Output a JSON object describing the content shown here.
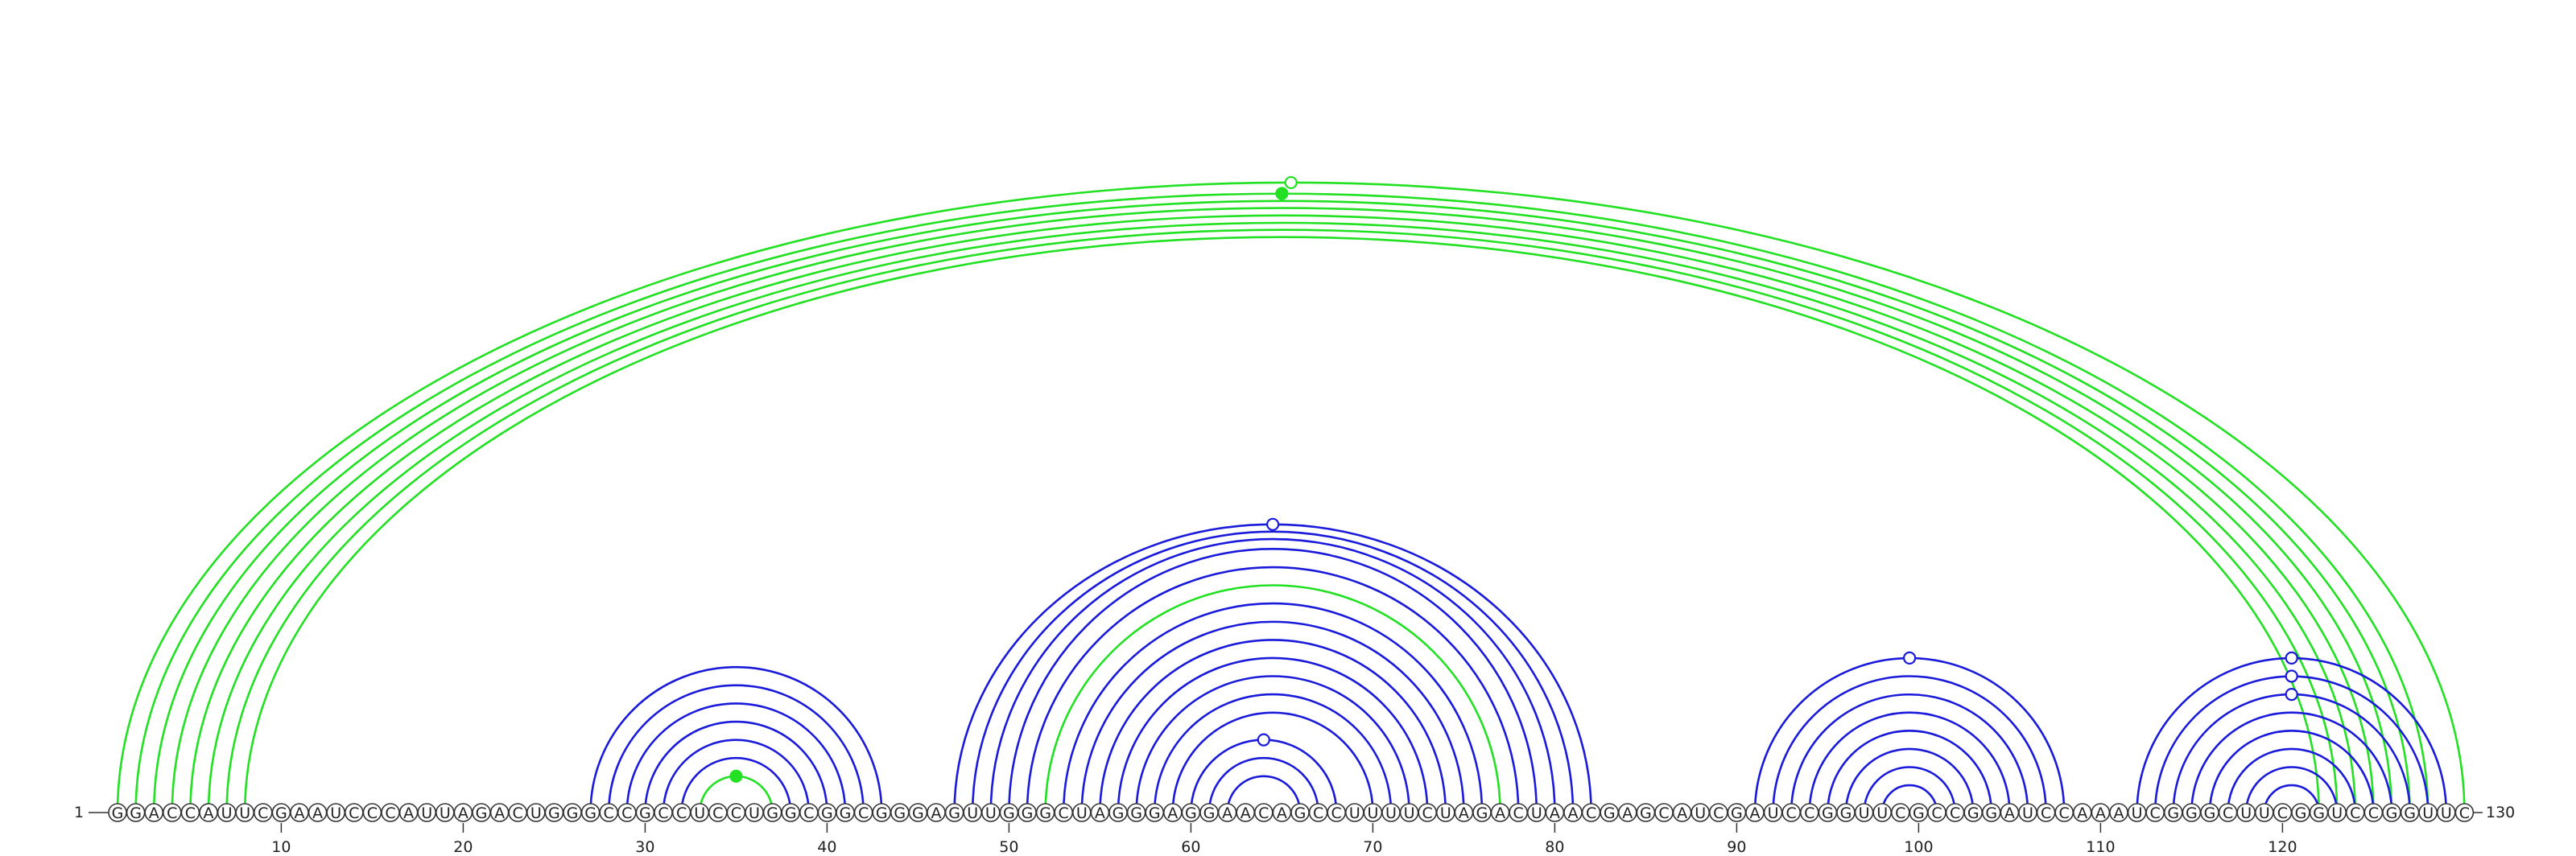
{
  "sequence": "GGACCAUUCGAAUCCCAUUAGACUGGGCCGCCUCCUGGCGGCGGGAGUUGGGCUAGGGAGGAACAGCCUUUUCUAGACUAACGAGCAUCGAUCCGGUUCGCCGGAUCCAAAUCGGGCUUCGGUCCGGUUC",
  "start_label": "1",
  "end_label": "130",
  "position_ticks": [
    10,
    20,
    30,
    40,
    50,
    60,
    70,
    80,
    90,
    100,
    110,
    120
  ],
  "colors": {
    "blue": "#1a1adb",
    "green": "#22e022"
  },
  "arcs": [
    {
      "i": 1,
      "j": 130,
      "color": "green"
    },
    {
      "i": 2,
      "j": 128,
      "color": "green"
    },
    {
      "i": 3,
      "j": 127,
      "color": "green"
    },
    {
      "i": 4,
      "j": 126,
      "color": "green"
    },
    {
      "i": 5,
      "j": 125,
      "color": "green"
    },
    {
      "i": 6,
      "j": 124,
      "color": "green"
    },
    {
      "i": 7,
      "j": 123,
      "color": "green"
    },
    {
      "i": 8,
      "j": 122,
      "color": "green"
    },
    {
      "i": 27,
      "j": 43,
      "color": "blue"
    },
    {
      "i": 28,
      "j": 42,
      "color": "blue"
    },
    {
      "i": 29,
      "j": 41,
      "color": "blue"
    },
    {
      "i": 30,
      "j": 40,
      "color": "blue"
    },
    {
      "i": 31,
      "j": 39,
      "color": "blue"
    },
    {
      "i": 32,
      "j": 38,
      "color": "blue"
    },
    {
      "i": 33,
      "j": 37,
      "color": "green"
    },
    {
      "i": 47,
      "j": 82,
      "color": "blue"
    },
    {
      "i": 48,
      "j": 81,
      "color": "blue"
    },
    {
      "i": 49,
      "j": 80,
      "color": "blue"
    },
    {
      "i": 50,
      "j": 79,
      "color": "blue"
    },
    {
      "i": 51,
      "j": 78,
      "color": "blue"
    },
    {
      "i": 52,
      "j": 77,
      "color": "green"
    },
    {
      "i": 53,
      "j": 76,
      "color": "blue"
    },
    {
      "i": 54,
      "j": 75,
      "color": "blue"
    },
    {
      "i": 55,
      "j": 74,
      "color": "blue"
    },
    {
      "i": 56,
      "j": 73,
      "color": "blue"
    },
    {
      "i": 57,
      "j": 72,
      "color": "blue"
    },
    {
      "i": 58,
      "j": 71,
      "color": "blue"
    },
    {
      "i": 59,
      "j": 70,
      "color": "blue"
    },
    {
      "i": 60,
      "j": 68,
      "color": "blue"
    },
    {
      "i": 61,
      "j": 67,
      "color": "blue"
    },
    {
      "i": 62,
      "j": 66,
      "color": "blue"
    },
    {
      "i": 91,
      "j": 108,
      "color": "blue"
    },
    {
      "i": 92,
      "j": 107,
      "color": "blue"
    },
    {
      "i": 93,
      "j": 106,
      "color": "blue"
    },
    {
      "i": 94,
      "j": 105,
      "color": "blue"
    },
    {
      "i": 95,
      "j": 104,
      "color": "blue"
    },
    {
      "i": 96,
      "j": 103,
      "color": "blue"
    },
    {
      "i": 97,
      "j": 102,
      "color": "blue"
    },
    {
      "i": 98,
      "j": 101,
      "color": "blue"
    },
    {
      "i": 112,
      "j": 129,
      "color": "blue"
    },
    {
      "i": 113,
      "j": 128,
      "color": "blue"
    },
    {
      "i": 114,
      "j": 127,
      "color": "blue"
    },
    {
      "i": 115,
      "j": 126,
      "color": "blue"
    },
    {
      "i": 116,
      "j": 125,
      "color": "blue"
    },
    {
      "i": 117,
      "j": 124,
      "color": "blue"
    },
    {
      "i": 118,
      "j": 123,
      "color": "blue"
    },
    {
      "i": 119,
      "j": 122,
      "color": "blue"
    }
  ],
  "markers": [
    {
      "pos": 66,
      "color": "green",
      "filled": false
    },
    {
      "pos": 65,
      "color": "blue",
      "filled": false
    },
    {
      "pos": 65,
      "color": "green",
      "filled": true
    },
    {
      "pos": 64,
      "color": "blue",
      "filled": false
    },
    {
      "pos": 35,
      "color": "green",
      "filled": true
    },
    {
      "pos": 99,
      "color": "blue",
      "filled": false
    },
    {
      "pos": 120,
      "color": "blue",
      "filled": false
    },
    {
      "pos": 120,
      "color": "blue",
      "filled": false
    },
    {
      "pos": 120,
      "color": "blue",
      "filled": false
    }
  ]
}
